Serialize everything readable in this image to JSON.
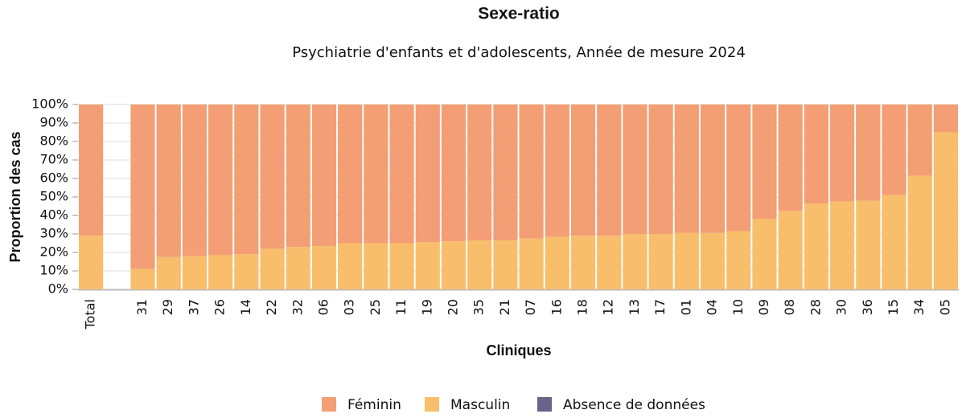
{
  "chart_data": {
    "type": "stacked_bar",
    "title": "Sexe-ratio",
    "subtitle": "Psychiatrie d'enfants et d'adolescents, Année de mesure 2024",
    "x_label": "Cliniques",
    "y_label": "Proportion des cas",
    "categories": [
      "Total",
      null,
      "31",
      "29",
      "37",
      "26",
      "14",
      "22",
      "32",
      "06",
      "03",
      "25",
      "11",
      "19",
      "20",
      "35",
      "21",
      "07",
      "16",
      "18",
      "12",
      "13",
      "17",
      "01",
      "04",
      "10",
      "09",
      "08",
      "28",
      "30",
      "36",
      "15",
      "34",
      "05"
    ],
    "series": [
      {
        "name": "Féminin",
        "color": "#f39e74",
        "values": [
          71,
          null,
          89,
          82.5,
          82,
          81.5,
          81,
          78,
          77,
          76.5,
          75,
          75,
          75,
          74.5,
          74,
          73.5,
          73.5,
          72.5,
          71.5,
          71,
          71,
          70,
          70,
          69.5,
          69.5,
          68.5,
          62,
          57.5,
          53.5,
          52.5,
          52,
          49,
          38.5,
          15
        ]
      },
      {
        "name": "Masculin",
        "color": "#f9be6c",
        "values": [
          29,
          null,
          11,
          17.5,
          18,
          18.5,
          19,
          22,
          23,
          23.5,
          25,
          25,
          25,
          25.5,
          26,
          26.5,
          26.5,
          27.5,
          28.5,
          29,
          29,
          30,
          30,
          30.5,
          30.5,
          31.5,
          38,
          42.5,
          46.5,
          47.5,
          48,
          51,
          61.5,
          85
        ]
      },
      {
        "name": "Absence de données",
        "color": "#6a6289",
        "values": [
          0,
          null,
          0,
          0,
          0,
          0,
          0,
          0,
          0,
          0,
          0,
          0,
          0,
          0,
          0,
          0,
          0,
          0,
          0,
          0,
          0,
          0,
          0,
          0,
          0,
          0,
          0,
          0,
          0,
          0,
          0,
          0,
          0,
          0
        ]
      }
    ],
    "ylim": [
      0,
      100
    ],
    "yticks": [
      {
        "value": 0,
        "label": "0%"
      },
      {
        "value": 10,
        "label": "10%"
      },
      {
        "value": 20,
        "label": "20%"
      },
      {
        "value": 30,
        "label": "30%"
      },
      {
        "value": 40,
        "label": "40%"
      },
      {
        "value": 50,
        "label": "50%"
      },
      {
        "value": 60,
        "label": "60%"
      },
      {
        "value": 70,
        "label": "70%"
      },
      {
        "value": 80,
        "label": "80%"
      },
      {
        "value": 90,
        "label": "90%"
      },
      {
        "value": 100,
        "label": "100%"
      }
    ],
    "grid": true
  }
}
